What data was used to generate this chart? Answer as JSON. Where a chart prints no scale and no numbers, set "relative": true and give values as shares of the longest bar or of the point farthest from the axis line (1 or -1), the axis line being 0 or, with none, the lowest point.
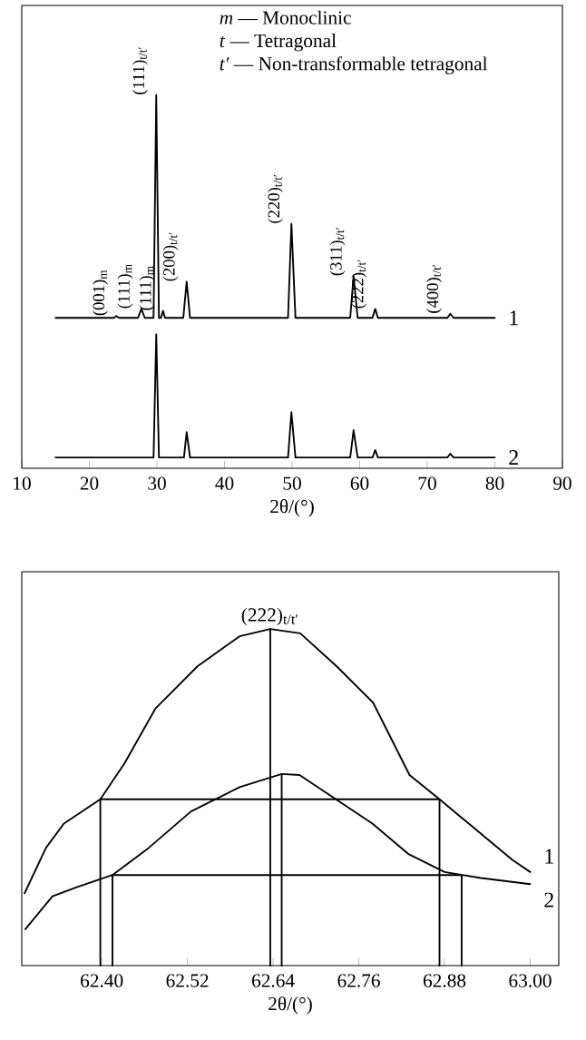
{
  "chart_data": [
    {
      "type": "line",
      "relative": true,
      "xlabel": "2θ/(°)",
      "xlim": [
        10,
        90
      ],
      "xticks": [
        10,
        20,
        30,
        40,
        50,
        60,
        70,
        80,
        90
      ],
      "series": [
        {
          "name": "1",
          "color": "#000000",
          "x": [
            15,
            23.6,
            24.0,
            24.4,
            27.2,
            27.7,
            28.2,
            29.5,
            29.9,
            30.3,
            30.6,
            30.9,
            31.2,
            33.9,
            34.4,
            34.9,
            49.4,
            49.9,
            50.5,
            58.6,
            59.1,
            59.7,
            61.9,
            62.3,
            62.7,
            73.0,
            73.4,
            73.9,
            80
          ],
          "values": [
            0.403,
            0.403,
            0.408,
            0.403,
            0.403,
            0.427,
            0.403,
            0.403,
            1,
            0.403,
            0.403,
            0.422,
            0.403,
            0.403,
            0.5,
            0.403,
            0.403,
            0.655,
            0.403,
            0.403,
            0.515,
            0.403,
            0.403,
            0.427,
            0.403,
            0.403,
            0.414,
            0.403,
            0.403
          ]
        },
        {
          "name": "2",
          "color": "#000000",
          "x": [
            15,
            29.5,
            29.9,
            30.3,
            34.0,
            34.4,
            34.9,
            49.4,
            49.9,
            50.5,
            58.6,
            59.1,
            59.7,
            61.9,
            62.3,
            62.7,
            73.0,
            73.4,
            73.9,
            80
          ],
          "values": [
            0.029,
            0.029,
            0.359,
            0.029,
            0.029,
            0.097,
            0.029,
            0.029,
            0.15,
            0.029,
            0.029,
            0.102,
            0.029,
            0.029,
            0.049,
            0.029,
            0.029,
            0.039,
            0.029,
            0.029
          ]
        }
      ],
      "annotations": [
        "*m* — Monoclinic",
        "*t* — Tetragonal",
        "*t′* — Non-transformable tetragonal",
        {
          "text": "(001)$_{m}$",
          "x": 24.0,
          "y": 0.408
        },
        {
          "text": "(111)$_{m}$",
          "x": 27.7,
          "y": 0.427
        },
        {
          "text": "(111)$_{t/t′}$",
          "x": 29.9,
          "y": 1
        },
        {
          "text": "(111)$_{m}$",
          "x": 30.9,
          "y": 0.422
        },
        {
          "text": "(200)$_{t/t′}$",
          "x": 34.4,
          "y": 0.5
        },
        {
          "text": "(220)$_{t/t′}$",
          "x": 49.9,
          "y": 0.655
        },
        {
          "text": "(311)$_{t/t′}$",
          "x": 59.1,
          "y": 0.515
        },
        {
          "text": "(222)$_{t/t′}$",
          "x": 62.3,
          "y": 0.427
        },
        {
          "text": "(400)$_{t/t′}$",
          "x": 73.4,
          "y": 0.414
        }
      ]
    },
    {
      "type": "line",
      "relative": true,
      "xlabel": "2θ/(°)",
      "xlim": [
        62.288,
        63.04
      ],
      "xticks": [
        {
          "value": 62.4,
          "label": "62.40"
        },
        {
          "value": 62.52,
          "label": "62.52"
        },
        {
          "value": 62.64,
          "label": "62.64"
        },
        {
          "value": 62.76,
          "label": "62.76"
        },
        {
          "value": 62.88,
          "label": "62.88"
        },
        {
          "value": 63.0,
          "label": "63.00"
        }
      ],
      "series": [
        {
          "name": "1",
          "color": "#000000",
          "x": [
            62.292,
            62.322,
            62.347,
            62.398,
            62.432,
            62.475,
            62.534,
            62.593,
            62.636,
            62.678,
            62.729,
            62.78,
            62.831,
            62.873,
            62.924,
            62.975,
            63.0
          ],
          "values": [
            0.215,
            0.35,
            0.422,
            0.494,
            0.601,
            0.763,
            0.889,
            0.978,
            1,
            0.987,
            0.889,
            0.781,
            0.566,
            0.494,
            0.404,
            0.314,
            0.278
          ]
        },
        {
          "name": "2",
          "color": "#000000",
          "x": [
            62.293,
            62.331,
            62.365,
            62.415,
            62.466,
            62.525,
            62.593,
            62.652,
            62.677,
            62.728,
            62.779,
            62.829,
            62.88,
            62.931,
            63.0
          ],
          "values": [
            0.108,
            0.206,
            0.233,
            0.269,
            0.35,
            0.458,
            0.53,
            0.569,
            0.566,
            0.494,
            0.422,
            0.332,
            0.278,
            0.26,
            0.242
          ]
        },
        {
          "color": "#000000",
          "x": [
            62.398,
            62.398,
            62.873,
            62.873
          ],
          "values": [
            0,
            0.494,
            0.494,
            0
          ]
        },
        {
          "color": "#000000",
          "x": [
            62.415,
            62.415,
            62.904,
            62.904
          ],
          "values": [
            0,
            0.269,
            0.269,
            0
          ]
        },
        {
          "color": "#000000",
          "x": [
            62.636,
            62.636
          ],
          "values": [
            0,
            1
          ]
        },
        {
          "color": "#000000",
          "x": [
            62.652,
            62.652
          ],
          "values": [
            0,
            0.569
          ]
        }
      ],
      "annotations": [
        {
          "text": "(222)$_{t/t′}$",
          "x": 62.636,
          "y": 1
        }
      ]
    }
  ]
}
